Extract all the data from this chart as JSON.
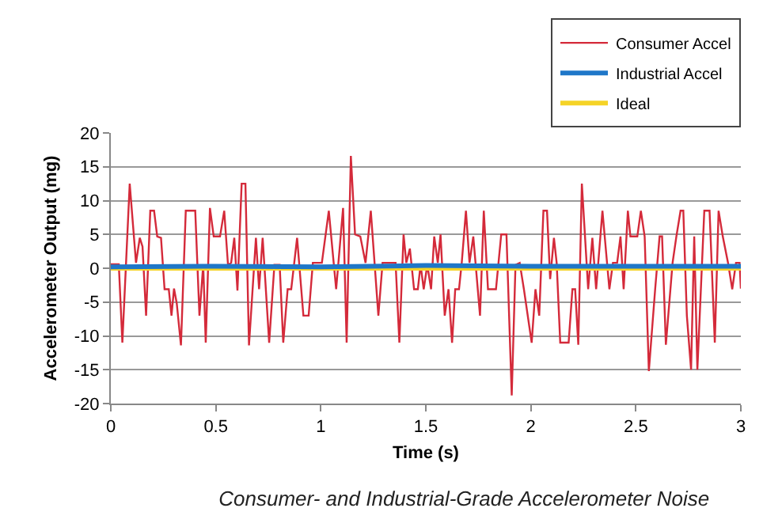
{
  "chart_data": {
    "type": "line",
    "title": "Consumer- and Industrial-Grade Accelerometer Noise",
    "xlabel": "Time (s)",
    "ylabel": "Accelerometer Output (mg)",
    "xlim": [
      0,
      3
    ],
    "xticks": [
      0,
      0.5,
      1,
      1.5,
      2,
      2.5,
      3
    ],
    "ylim": [
      -20,
      20
    ],
    "yticks": [
      -20,
      -15,
      -10,
      -5,
      0,
      5,
      10,
      15,
      20
    ],
    "grid": "y",
    "legend": "top right",
    "marker": "none",
    "line_style": "solid",
    "series": [
      {
        "name": "Consumer Accel",
        "color": "#d42a3a",
        "x": [
          0,
          0.01,
          0.038,
          0.055,
          0.09,
          0.12,
          0.138,
          0.151,
          0.168,
          0.188,
          0.206,
          0.221,
          0.239,
          0.256,
          0.276,
          0.289,
          0.301,
          0.314,
          0.334,
          0.357,
          0.402,
          0.422,
          0.44,
          0.452,
          0.472,
          0.49,
          0.52,
          0.54,
          0.558,
          0.573,
          0.588,
          0.603,
          0.623,
          0.641,
          0.658,
          0.691,
          0.706,
          0.723,
          0.754,
          0.779,
          0.804,
          0.821,
          0.842,
          0.859,
          0.887,
          0.917,
          0.942,
          0.962,
          1.005,
          1.038,
          1.073,
          1.106,
          1.123,
          1.143,
          1.163,
          1.188,
          1.213,
          1.238,
          1.274,
          1.294,
          1.356,
          1.374,
          1.394,
          1.407,
          1.424,
          1.444,
          1.462,
          1.475,
          1.49,
          1.507,
          1.525,
          1.54,
          1.557,
          1.57,
          1.59,
          1.608,
          1.625,
          1.64,
          1.658,
          1.671,
          1.691,
          1.708,
          1.726,
          1.758,
          1.776,
          1.796,
          1.834,
          1.859,
          1.884,
          1.909,
          1.927,
          1.947,
          1.967,
          2.004,
          2.022,
          2.04,
          2.06,
          2.077,
          2.092,
          2.11,
          2.123,
          2.14,
          2.18,
          2.198,
          2.211,
          2.226,
          2.243,
          2.273,
          2.293,
          2.311,
          2.341,
          2.374,
          2.391,
          2.411,
          2.427,
          2.442,
          2.462,
          2.474,
          2.507,
          2.524,
          2.542,
          2.562,
          2.592,
          2.613,
          2.625,
          2.643,
          2.675,
          2.693,
          2.713,
          2.726,
          2.743,
          2.763,
          2.778,
          2.793,
          2.826,
          2.851,
          2.876,
          2.894,
          2.914,
          2.939,
          2.959,
          2.977,
          2.994,
          3
        ],
        "values": [
          0.6,
          0.6,
          0.6,
          -11,
          12.5,
          0.8,
          4.5,
          3.2,
          -7,
          8.5,
          8.5,
          4.7,
          4.5,
          -3.1,
          -3.1,
          -7,
          -3,
          -5.2,
          -11.4,
          8.5,
          8.5,
          -7,
          0.5,
          -11,
          8.9,
          4.7,
          4.7,
          8.5,
          0.5,
          0.8,
          4.5,
          -3.3,
          12.5,
          12.5,
          -11.4,
          4.5,
          -3.1,
          4.5,
          -11,
          0.5,
          0.5,
          -11,
          -3.1,
          -3.1,
          4.5,
          -7,
          -7,
          0.8,
          0.8,
          8.5,
          -3.1,
          8.9,
          -11,
          16.6,
          5,
          4.7,
          0.8,
          8.5,
          -7,
          0.8,
          0.8,
          -11,
          5,
          0.8,
          2.9,
          -3.1,
          -3.1,
          0.5,
          -3.1,
          0.5,
          -3.1,
          4.7,
          0.8,
          5,
          -7,
          -3.1,
          -11,
          -3.1,
          -3.1,
          0.8,
          8.5,
          0.8,
          4.7,
          -7,
          8.5,
          -3.1,
          -3.1,
          5,
          5,
          -18.8,
          0.5,
          0.8,
          -3.1,
          -11,
          -3.1,
          -7,
          8.5,
          8.5,
          -1.6,
          4.5,
          0.8,
          -11,
          -11,
          -3.1,
          -3.1,
          -11.3,
          12.5,
          -3.1,
          4.5,
          -3.1,
          8.5,
          -3.1,
          0.8,
          0.8,
          4.7,
          -3.1,
          8.5,
          4.7,
          4.7,
          8.5,
          4.7,
          -15.2,
          -3.1,
          4.7,
          4.7,
          -11.3,
          0.8,
          4.7,
          8.5,
          8.5,
          -7,
          -15,
          4.7,
          -15,
          8.5,
          8.5,
          -11,
          8.5,
          4.7,
          0.8,
          -3.1,
          0.8,
          0.8,
          -3
        ]
      },
      {
        "name": "Industrial Accel",
        "color": "#1f77c8",
        "x": [
          0,
          0.5,
          1,
          1.5,
          2,
          2.5,
          3
        ],
        "values": [
          0.2,
          0.3,
          0.2,
          0.4,
          0.3,
          0.3,
          0.3
        ]
      },
      {
        "name": "Ideal",
        "color": "#f5d327",
        "x": [
          0,
          3
        ],
        "values": [
          0,
          0
        ]
      }
    ]
  }
}
